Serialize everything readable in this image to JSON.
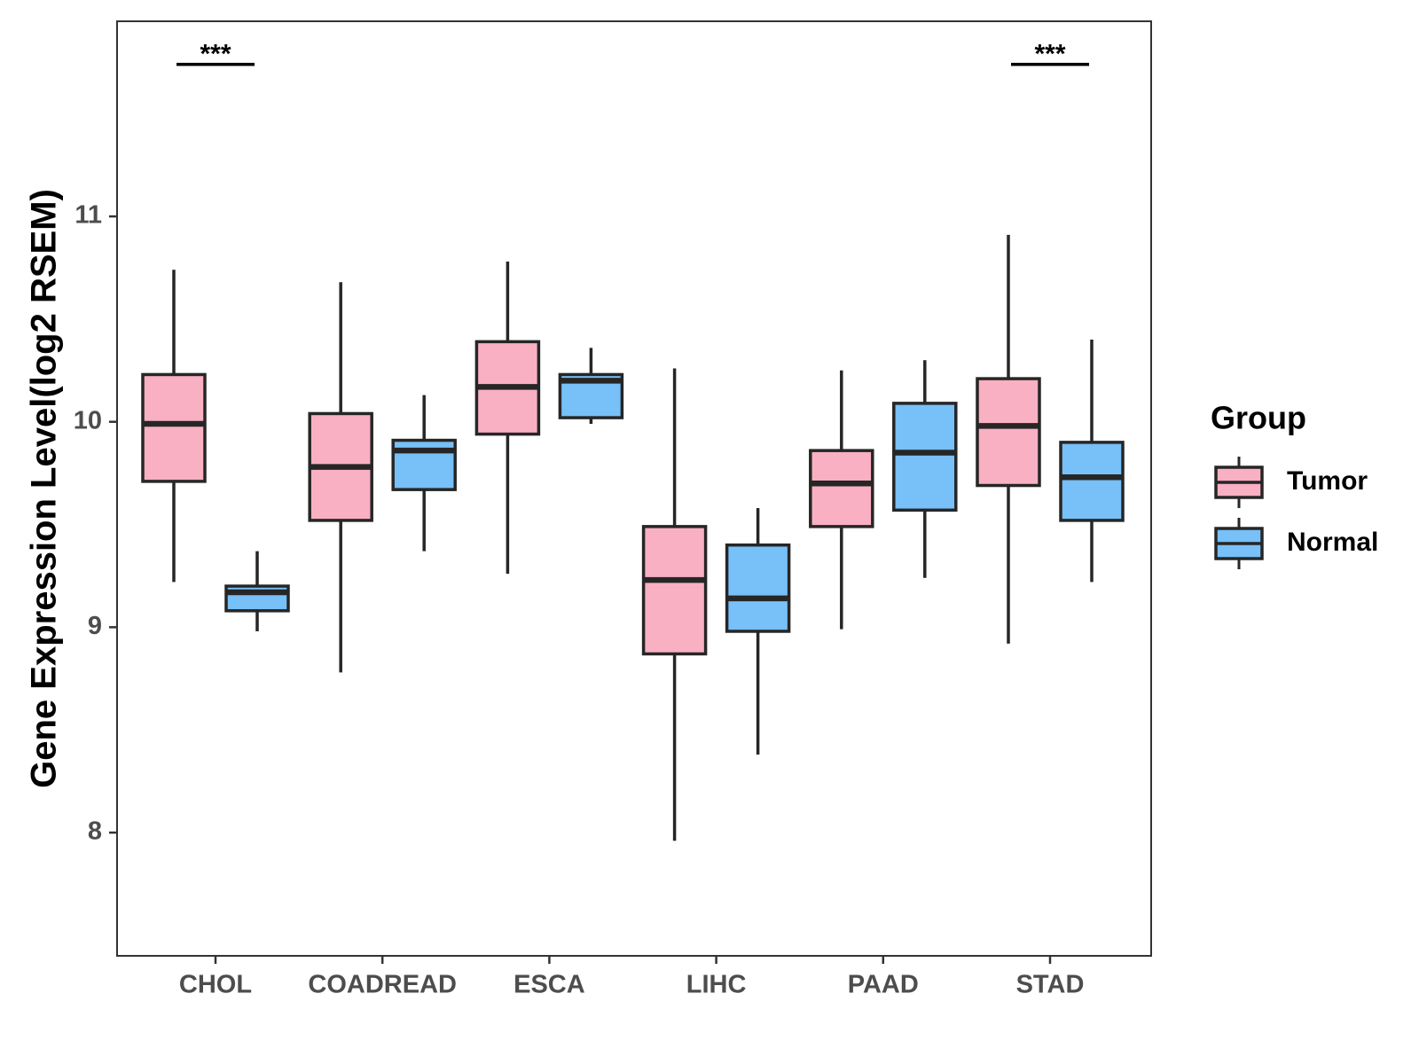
{
  "chart_data": {
    "type": "boxplot",
    "ylabel": "Gene Expression Level(log2 RSEM)",
    "xlabel": "",
    "ylim": [
      7.4,
      11.95
    ],
    "yticks": [
      8,
      9,
      10,
      11
    ],
    "grid": false,
    "legend_position": "right",
    "legend": {
      "title": "Group",
      "entries": [
        {
          "name": "Tumor",
          "color": "#f9b0c3"
        },
        {
          "name": "Normal",
          "color": "#77c0f8"
        }
      ]
    },
    "categories": [
      "CHOL",
      "COADREAD",
      "ESCA",
      "LIHC",
      "PAAD",
      "STAD"
    ],
    "series": [
      {
        "name": "Tumor",
        "color": "#f9b0c3",
        "boxes": [
          {
            "min": 9.22,
            "q1": 9.71,
            "median": 9.99,
            "q3": 10.23,
            "max": 10.74
          },
          {
            "min": 8.78,
            "q1": 9.52,
            "median": 9.78,
            "q3": 10.04,
            "max": 10.68
          },
          {
            "min": 9.26,
            "q1": 9.94,
            "median": 10.17,
            "q3": 10.39,
            "max": 10.78
          },
          {
            "min": 7.96,
            "q1": 8.87,
            "median": 9.23,
            "q3": 9.49,
            "max": 10.26
          },
          {
            "min": 8.99,
            "q1": 9.49,
            "median": 9.7,
            "q3": 9.86,
            "max": 10.25
          },
          {
            "min": 8.92,
            "q1": 9.69,
            "median": 9.98,
            "q3": 10.21,
            "max": 10.91
          }
        ]
      },
      {
        "name": "Normal",
        "color": "#77c0f8",
        "boxes": [
          {
            "min": 8.98,
            "q1": 9.08,
            "median": 9.17,
            "q3": 9.2,
            "max": 9.37
          },
          {
            "min": 9.37,
            "q1": 9.67,
            "median": 9.86,
            "q3": 9.91,
            "max": 10.13
          },
          {
            "min": 9.99,
            "q1": 10.02,
            "median": 10.2,
            "q3": 10.23,
            "max": 10.36
          },
          {
            "min": 8.38,
            "q1": 8.98,
            "median": 9.14,
            "q3": 9.4,
            "max": 9.58
          },
          {
            "min": 9.24,
            "q1": 9.57,
            "median": 9.85,
            "q3": 10.09,
            "max": 10.3
          },
          {
            "min": 9.22,
            "q1": 9.52,
            "median": 9.73,
            "q3": 9.9,
            "max": 10.4
          }
        ]
      }
    ],
    "annotations": [
      {
        "category": "CHOL",
        "text": "***",
        "y": 11.74
      },
      {
        "category": "STAD",
        "text": "***",
        "y": 11.74
      }
    ]
  }
}
